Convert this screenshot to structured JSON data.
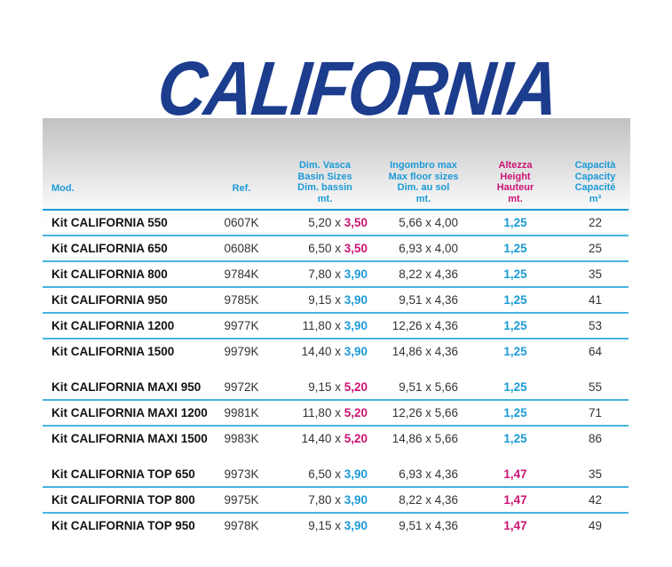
{
  "page": {
    "title": "CALIFORNIA",
    "colors": {
      "title_navy": "#1c3c8d",
      "cyan": "#1b9ad6",
      "magenta": "#cb1473",
      "row_line": "#45b5e0",
      "band_gray": "#c2c2c4",
      "text_dark": "#333336"
    }
  },
  "table": {
    "headers": {
      "mod": "Mod.",
      "ref": "Ref.",
      "basin": [
        "Dim. Vasca",
        "Basin Sizes",
        "Dim. bassin",
        "mt."
      ],
      "floor": [
        "Ingombro max",
        "Max floor sizes",
        "Dim. au sol",
        "mt."
      ],
      "height": [
        "Altezza",
        "Height",
        "Hauteur",
        "mt."
      ],
      "capacity": [
        "Capacità",
        "Capacity",
        "Capacité",
        "m³"
      ]
    },
    "groups": [
      {
        "rows": [
          {
            "model": "Kit CALIFORNIA 550",
            "ref": "0607K",
            "basin_pre": "5,20 x ",
            "basin_val": "3,50",
            "basin_color": "magenta",
            "floor": "5,66 x 4,00",
            "height": "1,25",
            "height_color": "cyan",
            "capacity": "22"
          },
          {
            "model": "Kit CALIFORNIA 650",
            "ref": "0608K",
            "basin_pre": "6,50 x ",
            "basin_val": "3,50",
            "basin_color": "magenta",
            "floor": "6,93 x 4,00",
            "height": "1,25",
            "height_color": "cyan",
            "capacity": "25"
          },
          {
            "model": "Kit CALIFORNIA 800",
            "ref": "9784K",
            "basin_pre": "7,80 x ",
            "basin_val": "3,90",
            "basin_color": "cyan",
            "floor": "8,22 x 4,36",
            "height": "1,25",
            "height_color": "cyan",
            "capacity": "35"
          },
          {
            "model": "Kit CALIFORNIA 950",
            "ref": "9785K",
            "basin_pre": "9,15 x ",
            "basin_val": "3,90",
            "basin_color": "cyan",
            "floor": "9,51 x 4,36",
            "height": "1,25",
            "height_color": "cyan",
            "capacity": "41"
          },
          {
            "model": "Kit CALIFORNIA 1200",
            "ref": "9977K",
            "basin_pre": "11,80 x ",
            "basin_val": "3,90",
            "basin_color": "cyan",
            "floor": "12,26 x 4,36",
            "height": "1,25",
            "height_color": "cyan",
            "capacity": "53"
          },
          {
            "model": "Kit CALIFORNIA 1500",
            "ref": "9979K",
            "basin_pre": "14,40 x ",
            "basin_val": "3,90",
            "basin_color": "cyan",
            "floor": "14,86 x 4,36",
            "height": "1,25",
            "height_color": "cyan",
            "capacity": "64"
          }
        ]
      },
      {
        "rows": [
          {
            "model": "Kit CALIFORNIA MAXI 950",
            "ref": "9972K",
            "basin_pre": "9,15 x ",
            "basin_val": "5,20",
            "basin_color": "magenta",
            "floor": "9,51 x 5,66",
            "height": "1,25",
            "height_color": "cyan",
            "capacity": "55"
          },
          {
            "model": "Kit CALIFORNIA MAXI 1200",
            "ref": "9981K",
            "basin_pre": "11,80 x ",
            "basin_val": "5,20",
            "basin_color": "magenta",
            "floor": "12,26 x 5,66",
            "height": "1,25",
            "height_color": "cyan",
            "capacity": "71"
          },
          {
            "model": "Kit CALIFORNIA MAXI 1500",
            "ref": "9983K",
            "basin_pre": "14,40 x ",
            "basin_val": "5,20",
            "basin_color": "magenta",
            "floor": "14,86 x 5,66",
            "height": "1,25",
            "height_color": "cyan",
            "capacity": "86"
          }
        ]
      },
      {
        "rows": [
          {
            "model": "Kit CALIFORNIA TOP 650",
            "ref": "9973K",
            "basin_pre": "6,50 x ",
            "basin_val": "3,90",
            "basin_color": "cyan",
            "floor": "6,93 x 4,36",
            "height": "1,47",
            "height_color": "magenta",
            "capacity": "35"
          },
          {
            "model": "Kit CALIFORNIA TOP 800",
            "ref": "9975K",
            "basin_pre": "7,80 x ",
            "basin_val": "3,90",
            "basin_color": "cyan",
            "floor": "8,22 x 4,36",
            "height": "1,47",
            "height_color": "magenta",
            "capacity": "42"
          },
          {
            "model": "Kit CALIFORNIA TOP 950",
            "ref": "9978K",
            "basin_pre": "9,15 x ",
            "basin_val": "3,90",
            "basin_color": "cyan",
            "floor": "9,51 x 4,36",
            "height": "1,47",
            "height_color": "magenta",
            "capacity": "49"
          }
        ]
      }
    ]
  }
}
